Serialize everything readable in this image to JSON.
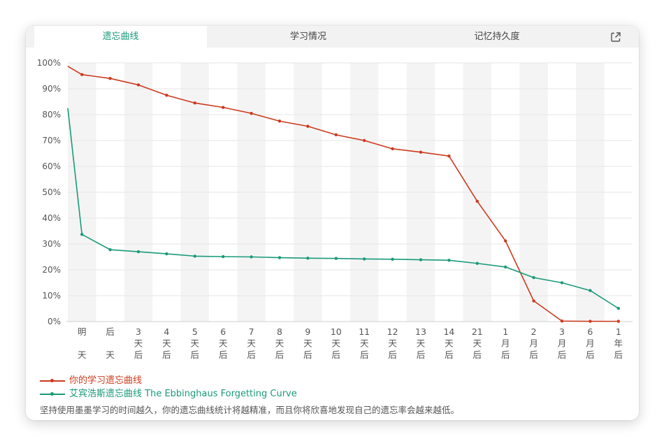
{
  "tabs": [
    {
      "label": "遗忘曲线",
      "active": true
    },
    {
      "label": "学习情况",
      "active": false
    },
    {
      "label": "记忆持久度",
      "active": false
    }
  ],
  "share_icon": "share-icon",
  "colors": {
    "user": "#cc3a1e",
    "ebbinghaus": "#1a9a7a",
    "accent": "#1a9a7a"
  },
  "chart_data": {
    "type": "line",
    "x_categories": [
      [
        "明",
        "天"
      ],
      [
        "后",
        "天"
      ],
      [
        "3",
        "天",
        "后"
      ],
      [
        "4",
        "天",
        "后"
      ],
      [
        "5",
        "天",
        "后"
      ],
      [
        "6",
        "天",
        "后"
      ],
      [
        "7",
        "天",
        "后"
      ],
      [
        "8",
        "天",
        "后"
      ],
      [
        "9",
        "天",
        "后"
      ],
      [
        "10",
        "天",
        "后"
      ],
      [
        "11",
        "天",
        "后"
      ],
      [
        "12",
        "天",
        "后"
      ],
      [
        "13",
        "天",
        "后"
      ],
      [
        "14",
        "天",
        "后"
      ],
      [
        "21",
        "天",
        "后"
      ],
      [
        "1",
        "月",
        "后"
      ],
      [
        "2",
        "月",
        "后"
      ],
      [
        "3",
        "月",
        "后"
      ],
      [
        "6",
        "月",
        "后"
      ],
      [
        "1",
        "年",
        "后"
      ]
    ],
    "y_ticks": [
      "0%",
      "10%",
      "20%",
      "30%",
      "40%",
      "50%",
      "60%",
      "70%",
      "80%",
      "90%",
      "100%"
    ],
    "ylim": [
      0,
      100
    ],
    "grid": true,
    "series": [
      {
        "name": "你的学习遗忘曲线",
        "color": "#cc3a1e",
        "start": 98.7,
        "values": [
          95.5,
          94.0,
          91.5,
          87.5,
          84.5,
          82.8,
          80.5,
          77.5,
          75.5,
          72.2,
          70.0,
          66.8,
          65.5,
          64.0,
          46.5,
          31.2,
          8.0,
          0.2,
          0.1,
          0.1
        ]
      },
      {
        "name": "艾宾浩斯遗忘曲线 The Ebbinghaus Forgetting Curve",
        "color": "#1a9a7a",
        "start": 82.5,
        "values": [
          33.7,
          27.8,
          27.0,
          26.2,
          25.3,
          25.1,
          25.0,
          24.7,
          24.5,
          24.4,
          24.2,
          24.1,
          23.9,
          23.7,
          22.5,
          21.1,
          17.0,
          15.0,
          12.0,
          5.1
        ]
      }
    ]
  },
  "footer_note": "坚持使用墨墨学习的时间越久，你的遗忘曲线统计将越精准，而且你将欣喜地发现自己的遗忘率会越来越低。"
}
